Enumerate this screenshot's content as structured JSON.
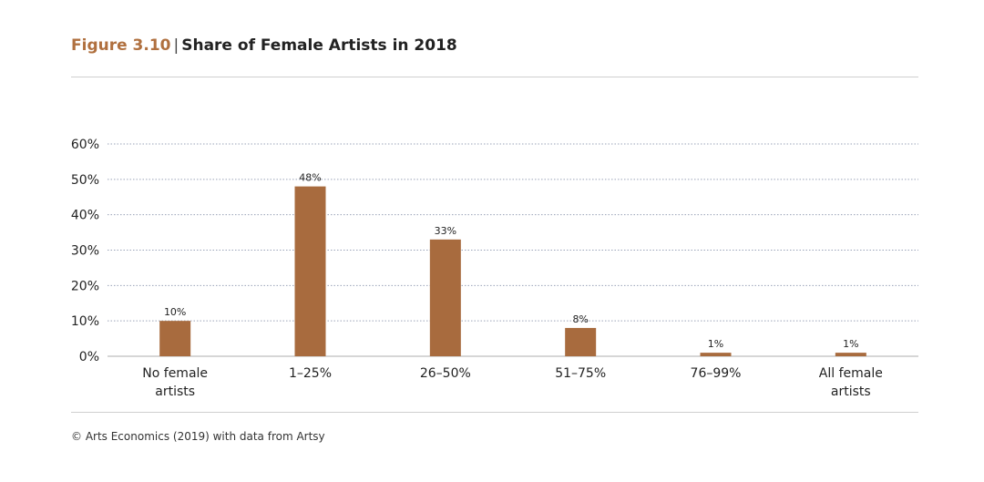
{
  "header": {
    "figure_label": "Figure 3.10",
    "separator": "|",
    "title": "Share of Female Artists in 2018"
  },
  "source": "© Arts Economics (2019) with data from Artsy",
  "colors": {
    "bar": "#a86b3e",
    "label_accent": "#b0703f",
    "gridline": "#9aa3b8",
    "baseline": "#c8c8c8"
  },
  "chart_data": {
    "type": "bar",
    "categories": [
      [
        "No female",
        "artists"
      ],
      [
        "1–25%"
      ],
      [
        "26–50%"
      ],
      [
        "51–75%"
      ],
      [
        "76–99%"
      ],
      [
        "All female",
        "artists"
      ]
    ],
    "values": [
      10,
      48,
      33,
      8,
      1,
      1
    ],
    "value_labels": [
      "10%",
      "48%",
      "33%",
      "8%",
      "1%",
      "1%"
    ],
    "title": "Share of Female Artists in 2018",
    "xlabel": "",
    "ylabel": "",
    "ylim": [
      0,
      60
    ],
    "yticks": [
      0,
      10,
      20,
      30,
      40,
      50,
      60
    ],
    "ytick_labels": [
      "0%",
      "10%",
      "20%",
      "30%",
      "40%",
      "50%",
      "60%"
    ],
    "grid": true,
    "legend": "none"
  }
}
